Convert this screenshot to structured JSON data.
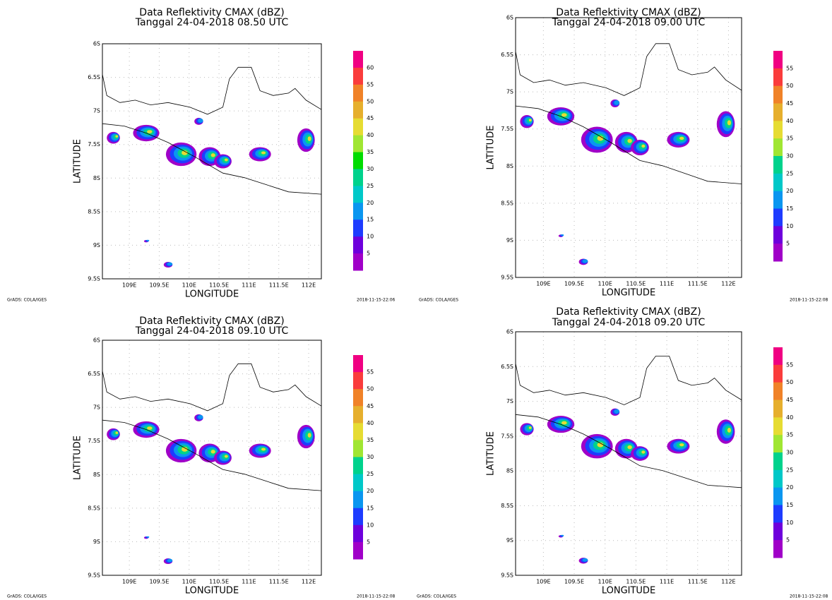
{
  "panels": [
    {
      "title": [
        "Data Reflektivity CMAX (dBZ)",
        "Tanggal 24-04-2018 08.50 UTC"
      ],
      "y_axis_label": "LATITUDE",
      "x_axis_label": "LONGITUDE",
      "y_tick_labels": [
        "6S",
        "6.5S",
        "7S",
        "7.5S",
        "8S",
        "8.5S",
        "9S",
        "9.5S"
      ],
      "x_tick_labels": [
        "109E",
        "109.5E",
        "110E",
        "110.5E",
        "111E",
        "111.5E",
        "112E"
      ],
      "colorbar_labels": [
        60,
        55,
        50,
        45,
        40,
        35,
        30,
        25,
        20,
        15,
        10,
        5
      ],
      "credit": "GrADS: COLA/IGES",
      "timestamp": "2018-11-15-22:06"
    },
    {
      "title": [
        "Data Reflektivity CMAX (dBZ)",
        "Tanggal 24-04-2018 09.00 UTC"
      ],
      "y_axis_label": "LATITUDE",
      "x_axis_label": "LONGITUDE",
      "y_tick_labels": [
        "6S",
        "6.5S",
        "7S",
        "7.5S",
        "8S",
        "8.5S",
        "9S",
        "9.5S"
      ],
      "x_tick_labels": [
        "109E",
        "109.5E",
        "110E",
        "110.5E",
        "111E",
        "111.5E",
        "112E"
      ],
      "colorbar_labels": [
        55,
        50,
        45,
        40,
        35,
        30,
        25,
        20,
        15,
        10,
        5
      ],
      "credit": "GrADS: COLA/IGES",
      "timestamp": "2018-11-15-22:08"
    },
    {
      "title": [
        "Data Reflektivity CMAX (dBZ)",
        "Tanggal 24-04-2018 09.10 UTC"
      ],
      "y_axis_label": "LATITUDE",
      "x_axis_label": "LONGITUDE",
      "y_tick_labels": [
        "6S",
        "6.5S",
        "7S",
        "7.5S",
        "8S",
        "8.5S",
        "9S",
        "9.5S"
      ],
      "x_tick_labels": [
        "109E",
        "109.5E",
        "110E",
        "110.5E",
        "111E",
        "111.5E",
        "112E"
      ],
      "colorbar_labels": [
        55,
        50,
        45,
        40,
        35,
        30,
        25,
        20,
        15,
        10,
        5
      ],
      "credit": "GrADS: COLA/IGES",
      "timestamp": "2018-11-15-22:08"
    },
    {
      "title": [
        "Data Reflektivity CMAX (dBZ)",
        "Tanggal 24-04-2018 09.20 UTC"
      ],
      "y_axis_label": "LATITUDE",
      "x_axis_label": "LONGITUDE",
      "y_tick_labels": [
        "6S",
        "6.5S",
        "7S",
        "7.5S",
        "8S",
        "8.5S",
        "9S",
        "9.5S"
      ],
      "x_tick_labels": [
        "109E",
        "109.5E",
        "110E",
        "110.5E",
        "111E",
        "111.5E",
        "112E"
      ],
      "colorbar_labels": [
        55,
        50,
        45,
        40,
        35,
        30,
        25,
        20,
        15,
        10,
        5
      ],
      "credit": "GrADS: COLA/IGES",
      "timestamp": "2018-11-15-22:08"
    }
  ]
}
